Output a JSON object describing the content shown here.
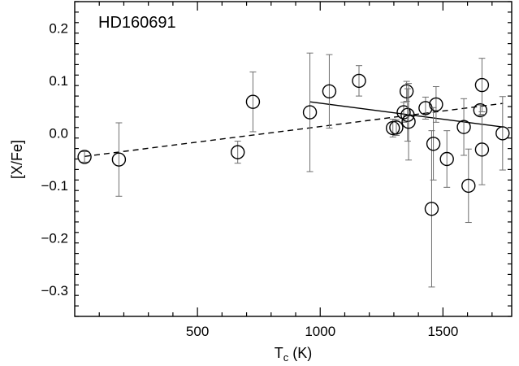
{
  "chart_data": {
    "type": "scatter",
    "title": "",
    "annotation": "HD160691",
    "xlabel_main": "T",
    "xlabel_sub": "c",
    "xlabel_unit": " (K)",
    "ylabel": "[X/Fe]",
    "xlim": [
      0,
      1780
    ],
    "ylim": [
      -0.35,
      0.25
    ],
    "grid": false,
    "xticks": [
      500,
      1000,
      1500
    ],
    "xtick_labels": [
      "500",
      "1000",
      "1500"
    ],
    "yticks": [
      -0.3,
      -0.2,
      -0.1,
      0.0,
      0.1,
      0.2
    ],
    "ytick_labels": [
      "−0.3",
      "−0.2",
      "−0.1",
      "0.0",
      "0.1",
      "0.2"
    ],
    "points": [
      {
        "x": 40,
        "y": -0.046,
        "err": 0.01
      },
      {
        "x": 180,
        "y": -0.051,
        "err": 0.07
      },
      {
        "x": 664,
        "y": -0.037,
        "err": 0.021
      },
      {
        "x": 726,
        "y": 0.059,
        "err": 0.057
      },
      {
        "x": 958,
        "y": 0.039,
        "err": 0.113
      },
      {
        "x": 1037,
        "y": 0.079,
        "err": 0.07
      },
      {
        "x": 1158,
        "y": 0.099,
        "err": 0.029
      },
      {
        "x": 1296,
        "y": 0.009,
        "err": 0.017
      },
      {
        "x": 1310,
        "y": 0.01,
        "err": 0.015
      },
      {
        "x": 1340,
        "y": 0.039,
        "err": 0.019
      },
      {
        "x": 1352,
        "y": 0.079,
        "err": 0.019
      },
      {
        "x": 1356,
        "y": 0.034,
        "err": 0.05
      },
      {
        "x": 1360,
        "y": 0.021,
        "err": 0.073
      },
      {
        "x": 1429,
        "y": 0.047,
        "err": 0.021
      },
      {
        "x": 1454,
        "y": -0.145,
        "err": 0.149
      },
      {
        "x": 1461,
        "y": -0.021,
        "err": 0.069
      },
      {
        "x": 1472,
        "y": 0.054,
        "err": 0.034
      },
      {
        "x": 1516,
        "y": -0.05,
        "err": 0.054
      },
      {
        "x": 1585,
        "y": 0.011,
        "err": 0.054
      },
      {
        "x": 1604,
        "y": -0.101,
        "err": 0.07
      },
      {
        "x": 1652,
        "y": 0.043,
        "err": 0.01
      },
      {
        "x": 1659,
        "y": -0.032,
        "err": 0.067
      },
      {
        "x": 1659,
        "y": 0.091,
        "err": 0.051
      },
      {
        "x": 1743,
        "y": -0.001,
        "err": 0.07
      }
    ],
    "fits": [
      {
        "style": "dashed",
        "x": [
          40,
          1745
        ],
        "y": [
          -0.045,
          0.056
        ]
      },
      {
        "style": "solid",
        "x": [
          958,
          1745
        ],
        "y": [
          0.059,
          0.011
        ]
      }
    ],
    "colors": {
      "axis": "#000000",
      "marker": "#000000",
      "errorbar": "#6e6e6e",
      "background": "#ffffff"
    }
  }
}
